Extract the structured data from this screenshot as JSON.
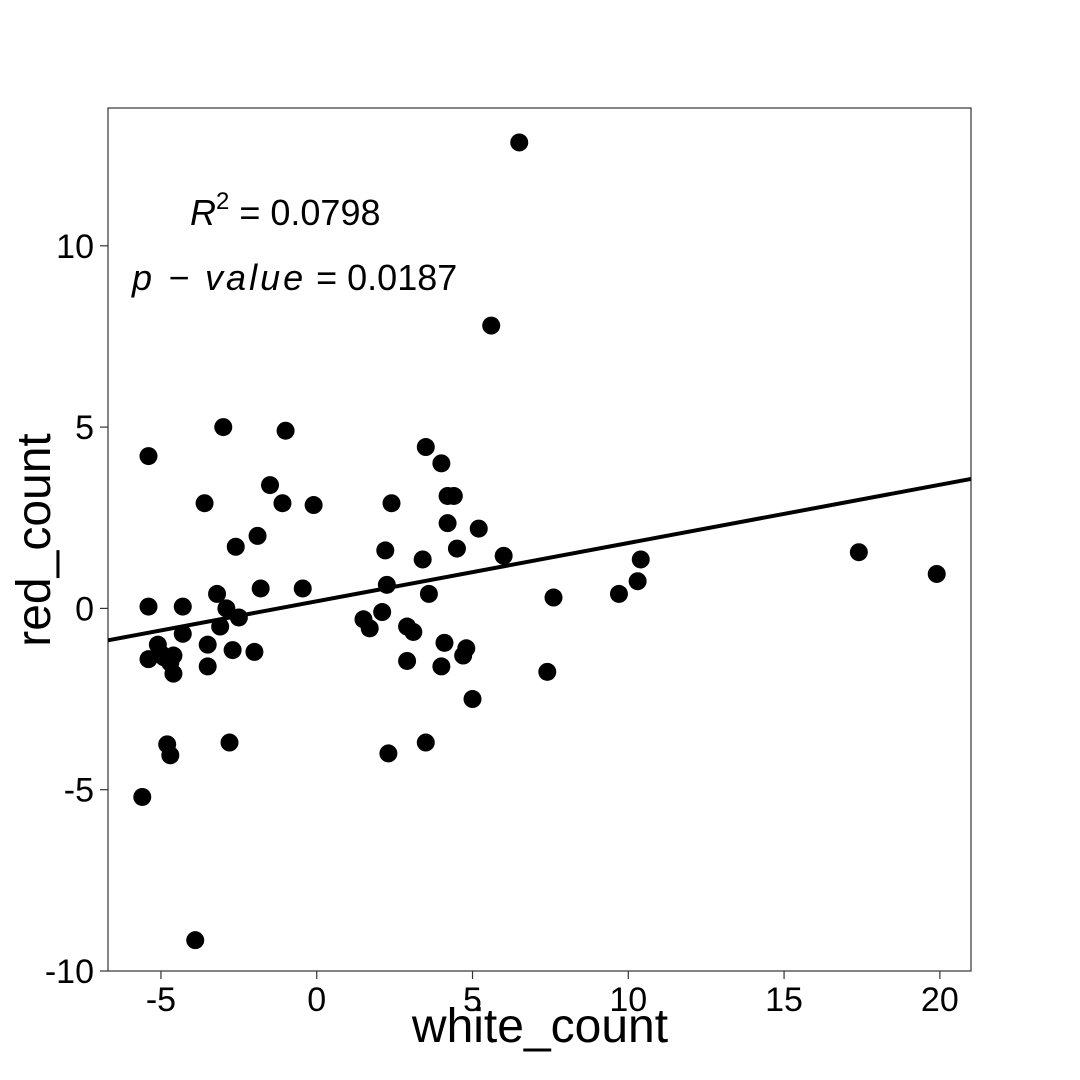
{
  "chart_data": {
    "type": "scatter",
    "title": "",
    "xlabel": "white_count",
    "ylabel": "red_count",
    "xlim": [
      -6.7,
      21.0
    ],
    "ylim": [
      -10.0,
      13.8
    ],
    "xticks": [
      -5,
      0,
      5,
      10,
      15,
      20
    ],
    "yticks": [
      -10,
      -5,
      0,
      5,
      10
    ],
    "xtick_labels": [
      "-5",
      "0",
      "5",
      "10",
      "15",
      "20"
    ],
    "ytick_labels": [
      "-10",
      "-5",
      "0",
      "5",
      "10"
    ],
    "grid": false,
    "colors": {
      "points": "#000000",
      "line": "#000000",
      "frame": "#333333"
    },
    "annotations": {
      "r2_symbol": "R",
      "r2_exponent": "2",
      "r2_equals": " = ",
      "r2_value": "0.0798",
      "p_label": "p − value",
      "p_equals": " = ",
      "p_value": "0.0187"
    },
    "regression": {
      "x": [
        -6.7,
        21.0
      ],
      "y": [
        -0.88,
        3.57
      ]
    },
    "points": [
      {
        "x": 6.5,
        "y": 12.85
      },
      {
        "x": 5.6,
        "y": 7.8
      },
      {
        "x": -3.0,
        "y": 5.0
      },
      {
        "x": -1.0,
        "y": 4.9
      },
      {
        "x": -5.4,
        "y": 4.2
      },
      {
        "x": 3.5,
        "y": 4.45
      },
      {
        "x": 4.0,
        "y": 4.0
      },
      {
        "x": -1.5,
        "y": 3.4
      },
      {
        "x": -3.6,
        "y": 2.9
      },
      {
        "x": -1.1,
        "y": 2.9
      },
      {
        "x": -0.1,
        "y": 2.85
      },
      {
        "x": 2.4,
        "y": 2.9
      },
      {
        "x": 4.2,
        "y": 3.1
      },
      {
        "x": 4.4,
        "y": 3.1
      },
      {
        "x": 4.2,
        "y": 2.35
      },
      {
        "x": 5.2,
        "y": 2.2
      },
      {
        "x": -1.9,
        "y": 2.0
      },
      {
        "x": -2.6,
        "y": 1.7
      },
      {
        "x": 4.5,
        "y": 1.65
      },
      {
        "x": 2.2,
        "y": 1.6
      },
      {
        "x": 6.0,
        "y": 1.45
      },
      {
        "x": 3.4,
        "y": 1.35
      },
      {
        "x": 10.4,
        "y": 1.35
      },
      {
        "x": 17.4,
        "y": 1.55
      },
      {
        "x": 19.9,
        "y": 0.95
      },
      {
        "x": 10.3,
        "y": 0.75
      },
      {
        "x": 2.25,
        "y": 0.65
      },
      {
        "x": -0.45,
        "y": 0.55
      },
      {
        "x": -1.8,
        "y": 0.55
      },
      {
        "x": 3.6,
        "y": 0.4
      },
      {
        "x": 9.7,
        "y": 0.4
      },
      {
        "x": 7.6,
        "y": 0.3
      },
      {
        "x": -3.2,
        "y": 0.4
      },
      {
        "x": -5.4,
        "y": 0.05
      },
      {
        "x": -4.3,
        "y": 0.05
      },
      {
        "x": -2.9,
        "y": 0.0
      },
      {
        "x": 2.1,
        "y": -0.1
      },
      {
        "x": -2.5,
        "y": -0.25
      },
      {
        "x": 1.5,
        "y": -0.3
      },
      {
        "x": -3.1,
        "y": -0.5
      },
      {
        "x": 1.7,
        "y": -0.55
      },
      {
        "x": 2.9,
        "y": -0.5
      },
      {
        "x": 3.1,
        "y": -0.65
      },
      {
        "x": -4.3,
        "y": -0.7
      },
      {
        "x": -5.1,
        "y": -1.0
      },
      {
        "x": -3.5,
        "y": -1.0
      },
      {
        "x": 4.1,
        "y": -0.95
      },
      {
        "x": -2.7,
        "y": -1.15
      },
      {
        "x": -2.0,
        "y": -1.2
      },
      {
        "x": 4.8,
        "y": -1.1
      },
      {
        "x": -5.0,
        "y": -1.25
      },
      {
        "x": -4.9,
        "y": -1.35
      },
      {
        "x": -4.6,
        "y": -1.3
      },
      {
        "x": -5.4,
        "y": -1.4
      },
      {
        "x": -4.7,
        "y": -1.5
      },
      {
        "x": 4.7,
        "y": -1.3
      },
      {
        "x": 2.9,
        "y": -1.45
      },
      {
        "x": -3.5,
        "y": -1.6
      },
      {
        "x": 4.0,
        "y": -1.6
      },
      {
        "x": -4.6,
        "y": -1.8
      },
      {
        "x": 7.4,
        "y": -1.75
      },
      {
        "x": 5.0,
        "y": -2.5
      },
      {
        "x": -4.8,
        "y": -3.75
      },
      {
        "x": -2.8,
        "y": -3.7
      },
      {
        "x": 3.5,
        "y": -3.7
      },
      {
        "x": -4.7,
        "y": -4.05
      },
      {
        "x": 2.3,
        "y": -4.0
      },
      {
        "x": -5.6,
        "y": -5.2
      },
      {
        "x": -3.9,
        "y": -9.15
      }
    ]
  }
}
